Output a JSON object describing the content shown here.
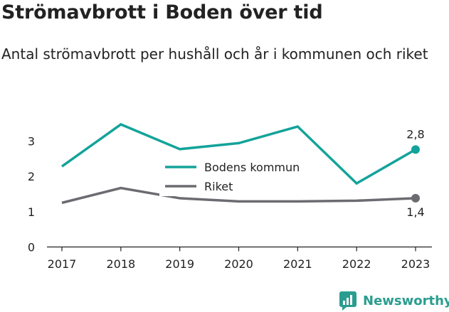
{
  "title": "Strömavbrott i Boden över tid",
  "subtitle": "Antal strömavbrott per hushåll och år i kommunen och riket",
  "brand": "Newsworthy",
  "colors": {
    "bodens": "#14a39a",
    "riket": "#6c6b71",
    "axis": "#222222"
  },
  "chart_data": {
    "type": "line",
    "x": [
      "2017",
      "2018",
      "2019",
      "2020",
      "2021",
      "2022",
      "2023"
    ],
    "series": [
      {
        "name": "Bodens kommun",
        "values": [
          2.28,
          3.47,
          2.77,
          2.94,
          3.41,
          1.8,
          2.76
        ],
        "end_label": "2,8"
      },
      {
        "name": "Riket",
        "values": [
          1.25,
          1.67,
          1.38,
          1.29,
          1.29,
          1.31,
          1.38
        ],
        "end_label": "1,4"
      }
    ],
    "yticks": [
      "0",
      "1",
      "2",
      "3"
    ],
    "ylim": [
      0,
      3.7
    ],
    "legend": "center",
    "grid": false
  }
}
